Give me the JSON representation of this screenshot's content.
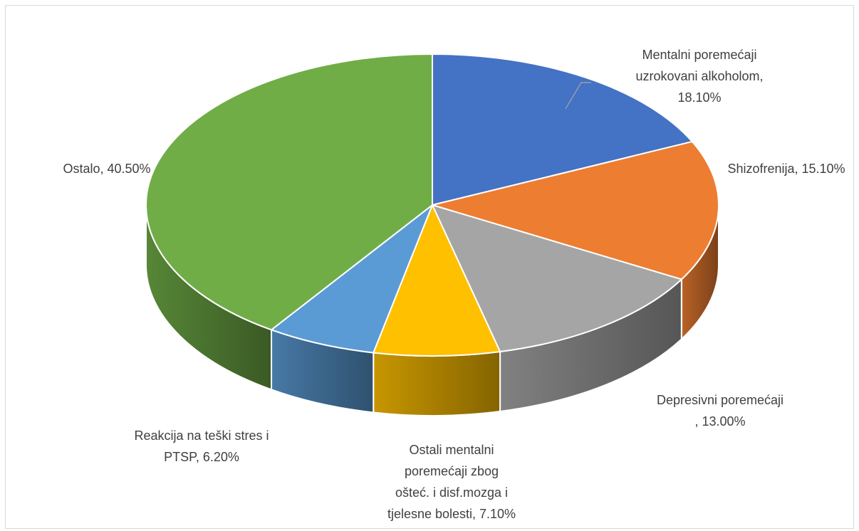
{
  "chart_data": {
    "type": "pie",
    "style": "3d",
    "title": "",
    "slices": [
      {
        "name": "Mentalni poremećaji uzrokovani alkoholom",
        "value": 18.1,
        "label_lines": [
          "Mentalni poremećaji",
          "uzrokovani alkoholom,",
          "18.10%"
        ],
        "color": "#4472C4"
      },
      {
        "name": "Shizofrenija",
        "value": 15.1,
        "label_lines": [
          "Shizofrenija, 15.10%"
        ],
        "color": "#ED7D31"
      },
      {
        "name": "Depresivni poremećaji",
        "value": 13.0,
        "label_lines": [
          "Depresivni poremećaji",
          ", 13.00%"
        ],
        "color": "#A5A5A5"
      },
      {
        "name": "Ostali mentalni poremećaji zbog ošteć. i disf.mozga i tjelesne bolesti",
        "value": 7.1,
        "label_lines": [
          "Ostali mentalni",
          "poremećaji zbog",
          "ošteć. i disf.mozga i",
          "tjelesne bolesti, 7.10%"
        ],
        "color": "#FFC000"
      },
      {
        "name": "Reakcija na teški stres i PTSP",
        "value": 6.2,
        "label_lines": [
          "Reakcija na teški stres i",
          "PTSP, 6.20%"
        ],
        "color": "#5B9BD5"
      },
      {
        "name": "Ostalo",
        "value": 40.5,
        "label_lines": [
          "Ostalo, 40.50%"
        ],
        "color": "#70AD47"
      }
    ]
  }
}
